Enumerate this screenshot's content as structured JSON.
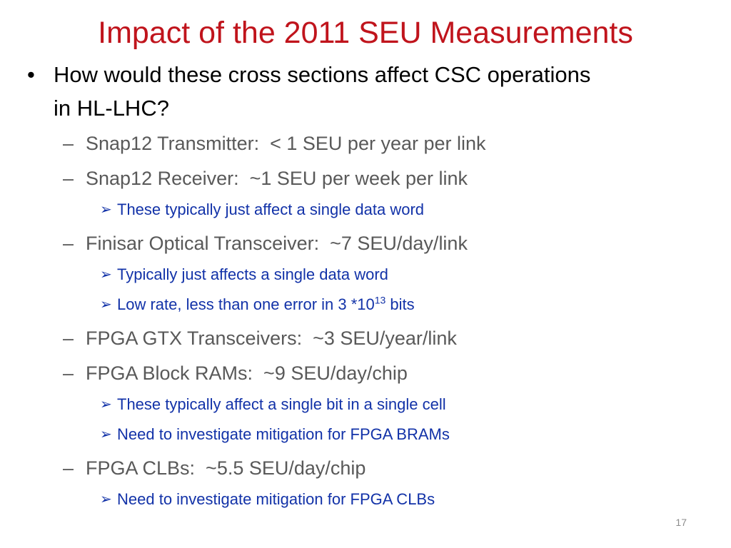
{
  "title": "Impact of the 2011 SEU Measurements",
  "bullet": "How would these cross sections affect CSC operations in HL-LHC?",
  "items": [
    {
      "text": "Snap12 Transmitter:  < 1 SEU per year per link"
    },
    {
      "text": "Snap12 Receiver:  ~1 SEU per week per link",
      "notes": [
        {
          "text": "These typically just affect a single data word"
        }
      ]
    },
    {
      "text": "Finisar Optical Transceiver:  ~7 SEU/day/link",
      "notes": [
        {
          "text": "Typically just affects a single data word"
        },
        {
          "text": "Low rate, less than one error in 3 *10",
          "sup": "13",
          "tail": "bits"
        }
      ]
    },
    {
      "text": "FPGA GTX Transceivers:  ~3 SEU/year/link"
    },
    {
      "text": "FPGA Block RAMs:  ~9 SEU/day/chip",
      "notes": [
        {
          "text": "These typically affect a single bit in a single cell"
        },
        {
          "text": "Need to investigate mitigation for FPGA BRAMs"
        }
      ]
    },
    {
      "text": "FPGA CLBs:  ~5.5 SEU/day/chip",
      "notes": [
        {
          "text": "Need to investigate mitigation for FPGA CLBs"
        }
      ]
    }
  ],
  "page_number": "17"
}
